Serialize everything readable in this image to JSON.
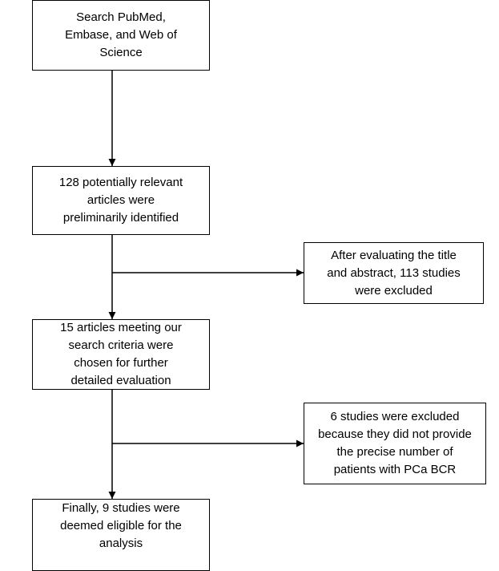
{
  "nodes": [
    {
      "lines": [
        "Search PubMed,",
        "Embase, and Web of",
        "Science"
      ]
    },
    {
      "lines": [
        "128 potentially relevant",
        "articles were",
        "preliminarily identified"
      ]
    },
    {
      "lines": [
        "After evaluating the title",
        "and abstract, 113 studies",
        "were excluded"
      ]
    },
    {
      "lines": [
        "15 articles meeting our",
        "search criteria were",
        "chosen for further",
        "detailed evaluation"
      ]
    },
    {
      "lines": [
        "6 studies were excluded",
        "because they did not provide",
        "the precise number of",
        "patients with PCa BCR"
      ]
    },
    {
      "lines": [
        "Finally, 9 studies were",
        "deemed eligible for the",
        "analysis"
      ]
    }
  ]
}
